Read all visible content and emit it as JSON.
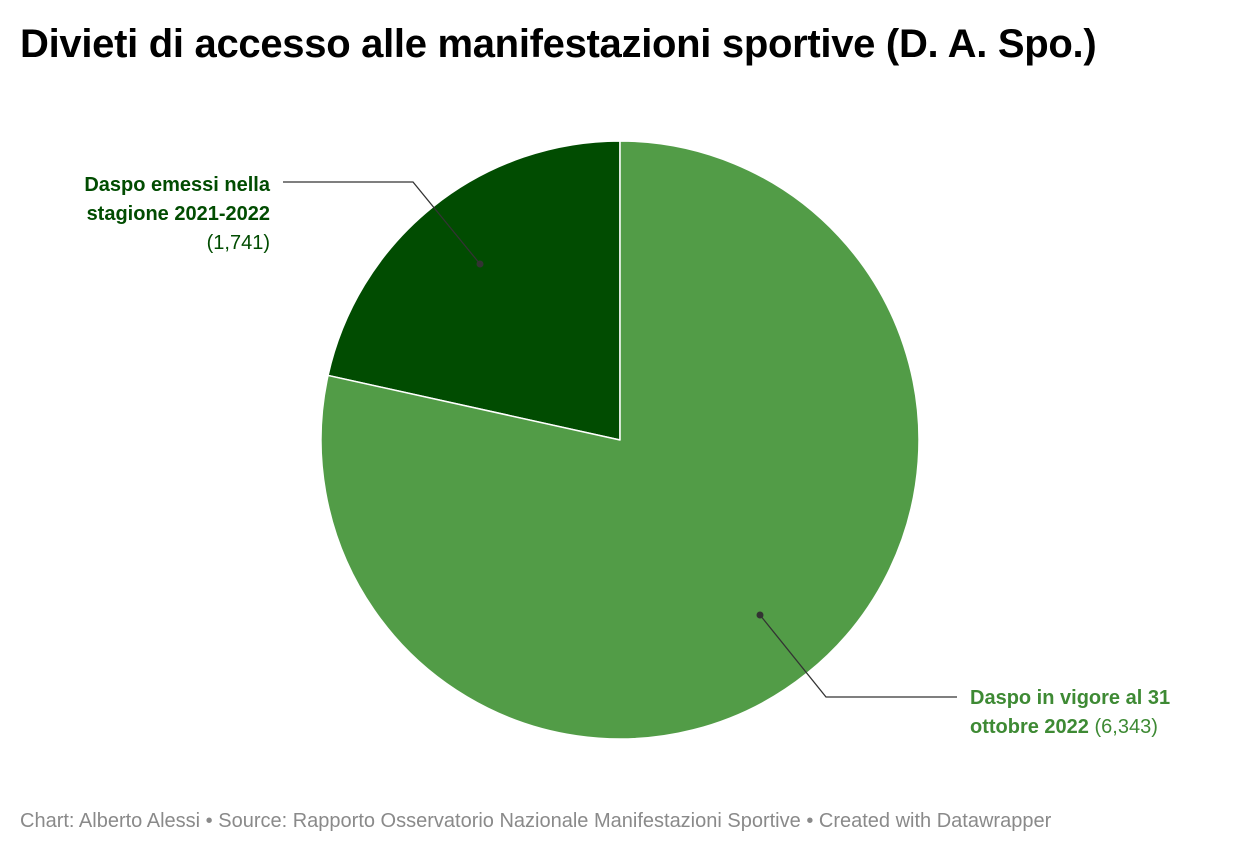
{
  "title": "Divieti di accesso alle manifestazioni sportive (D. A. Spo.)",
  "footer": {
    "author": "Chart: Alberto Alessi",
    "separator": "•",
    "source": "Source: Rapporto Osservatorio Nazionale Manifestazioni Sportive",
    "credit": "Created with Datawrapper"
  },
  "chart_data": {
    "type": "pie",
    "title": "Divieti di accesso alle manifestazioni sportive (D. A. Spo.)",
    "slices": [
      {
        "name_lines": [
          "Daspo emessi nella",
          "stagione 2021-2022"
        ],
        "value": 1741,
        "value_label": "(1,741)",
        "color": "#014c01"
      },
      {
        "name_lines": [
          "Daspo in vigore al 31",
          "ottobre 2022"
        ],
        "value": 6343,
        "value_label": "(6,343)",
        "color": "#529c47"
      }
    ],
    "colors": {
      "label_dark": "#014c01",
      "label_light": "#3e8a34",
      "leader": "#333333",
      "slice_border": "#ffffff"
    }
  }
}
